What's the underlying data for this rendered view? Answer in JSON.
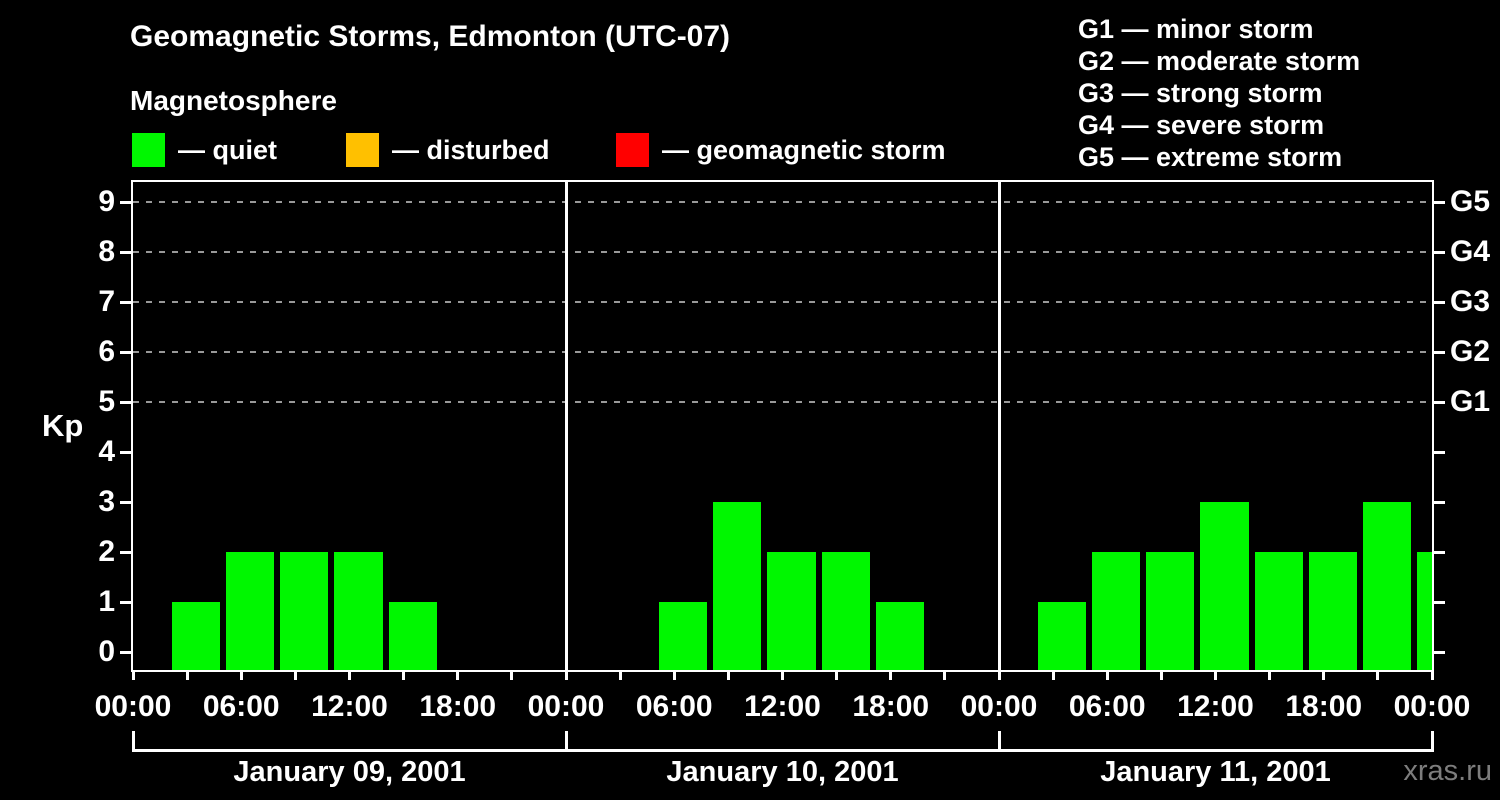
{
  "header": {
    "title": "Geomagnetic Storms, Edmonton (UTC-07)",
    "subtitle": "Magnetosphere"
  },
  "colors": {
    "background": "#000000",
    "text": "#ffffff",
    "quiet": "#00f700",
    "disturbed": "#ffc000",
    "storm": "#ff0000",
    "grid": "#999999",
    "axis": "#ffffff",
    "watermark": "#7d7d7d"
  },
  "kp_legend": [
    {
      "label": "— quiet",
      "color": "#00f700"
    },
    {
      "label": "— disturbed",
      "color": "#ffc000"
    },
    {
      "label": "— geomagnetic storm",
      "color": "#ff0000"
    }
  ],
  "g_legend": [
    "G1 — minor storm",
    "G2 — moderate storm",
    "G3 — strong storm",
    "G4 — severe storm",
    "G5 — extreme storm"
  ],
  "watermark": "xras.ru",
  "chart_data": {
    "type": "bar",
    "title": "Geomagnetic Storms, Edmonton (UTC-07)",
    "subtitle": "Magnetosphere",
    "ylabel": "Kp",
    "ylim": [
      -0.36,
      9.4
    ],
    "yticks": [
      0,
      1,
      2,
      3,
      4,
      5,
      6,
      7,
      8,
      9
    ],
    "grid_levels": [
      5,
      6,
      7,
      8,
      9
    ],
    "grid_style": "dashed",
    "right_axis_labels": [
      {
        "kp": 9,
        "label": "G5"
      },
      {
        "kp": 8,
        "label": "G4"
      },
      {
        "kp": 7,
        "label": "G3"
      },
      {
        "kp": 6,
        "label": "G2"
      },
      {
        "kp": 5,
        "label": "G1"
      }
    ],
    "bar_color": "#00f700",
    "slot_duration_hours": 3,
    "x_tick_every_hours": 3,
    "x_label_every_hours": 6,
    "x_axis_labels": [
      "00:00",
      "06:00",
      "12:00",
      "18:00",
      "00:00",
      "06:00",
      "12:00",
      "18:00",
      "00:00",
      "06:00",
      "12:00",
      "18:00",
      "00:00"
    ],
    "days": [
      {
        "date": "January 09, 2001",
        "slot_start_hours": [
          0,
          3,
          6,
          9,
          12,
          15,
          18,
          21
        ],
        "kp_values": [
          0,
          1,
          2,
          2,
          2,
          1,
          0,
          0
        ]
      },
      {
        "date": "January 10, 2001",
        "slot_start_hours": [
          0,
          3,
          6,
          9,
          12,
          15,
          18,
          21
        ],
        "kp_values": [
          0,
          0,
          1,
          3,
          2,
          2,
          1,
          0
        ]
      },
      {
        "date": "January 11, 2001",
        "slot_start_hours": [
          0,
          3,
          6,
          9,
          12,
          15,
          18,
          21
        ],
        "kp_values": [
          0,
          1,
          2,
          2,
          3,
          2,
          2,
          3
        ]
      }
    ],
    "next_day_partial_kp": 2,
    "legend_position": "top-left"
  }
}
